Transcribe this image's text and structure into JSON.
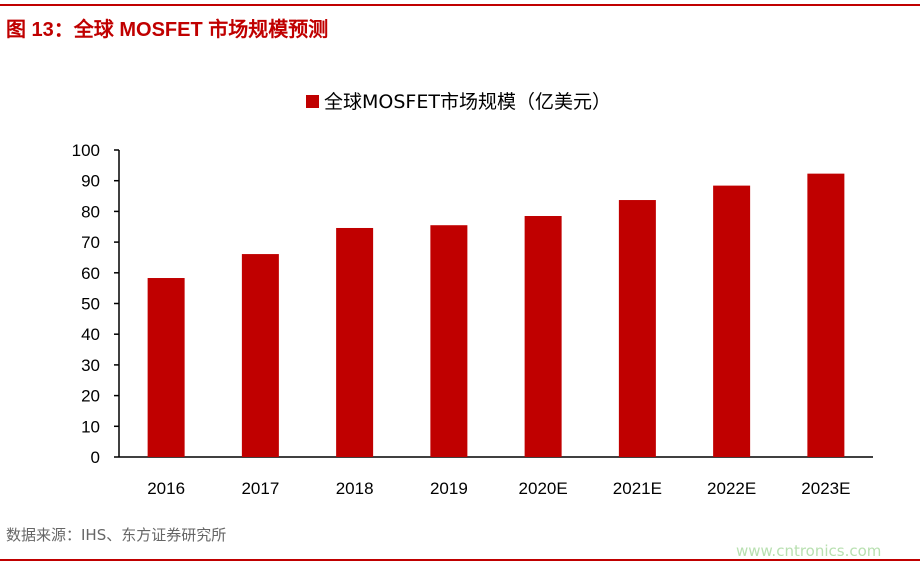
{
  "title": "图 13：全球 MOSFET 市场规模预测",
  "source": "数据来源：IHS、东方证券研究所",
  "watermark": "www.cntronics.com",
  "chart_data": {
    "type": "bar",
    "legend": "全球MOSFET市场规模（亿美元）",
    "legend_position": "top",
    "categories": [
      "2016",
      "2017",
      "2018",
      "2019",
      "2020E",
      "2021E",
      "2022E",
      "2023E"
    ],
    "values": [
      58.3,
      66.1,
      74.6,
      75.5,
      78.5,
      83.7,
      88.4,
      92.3
    ],
    "ylim": [
      0,
      100
    ],
    "yticks": [
      0,
      10,
      20,
      30,
      40,
      50,
      60,
      70,
      80,
      90,
      100
    ],
    "grid": false,
    "color": "#c00000"
  }
}
